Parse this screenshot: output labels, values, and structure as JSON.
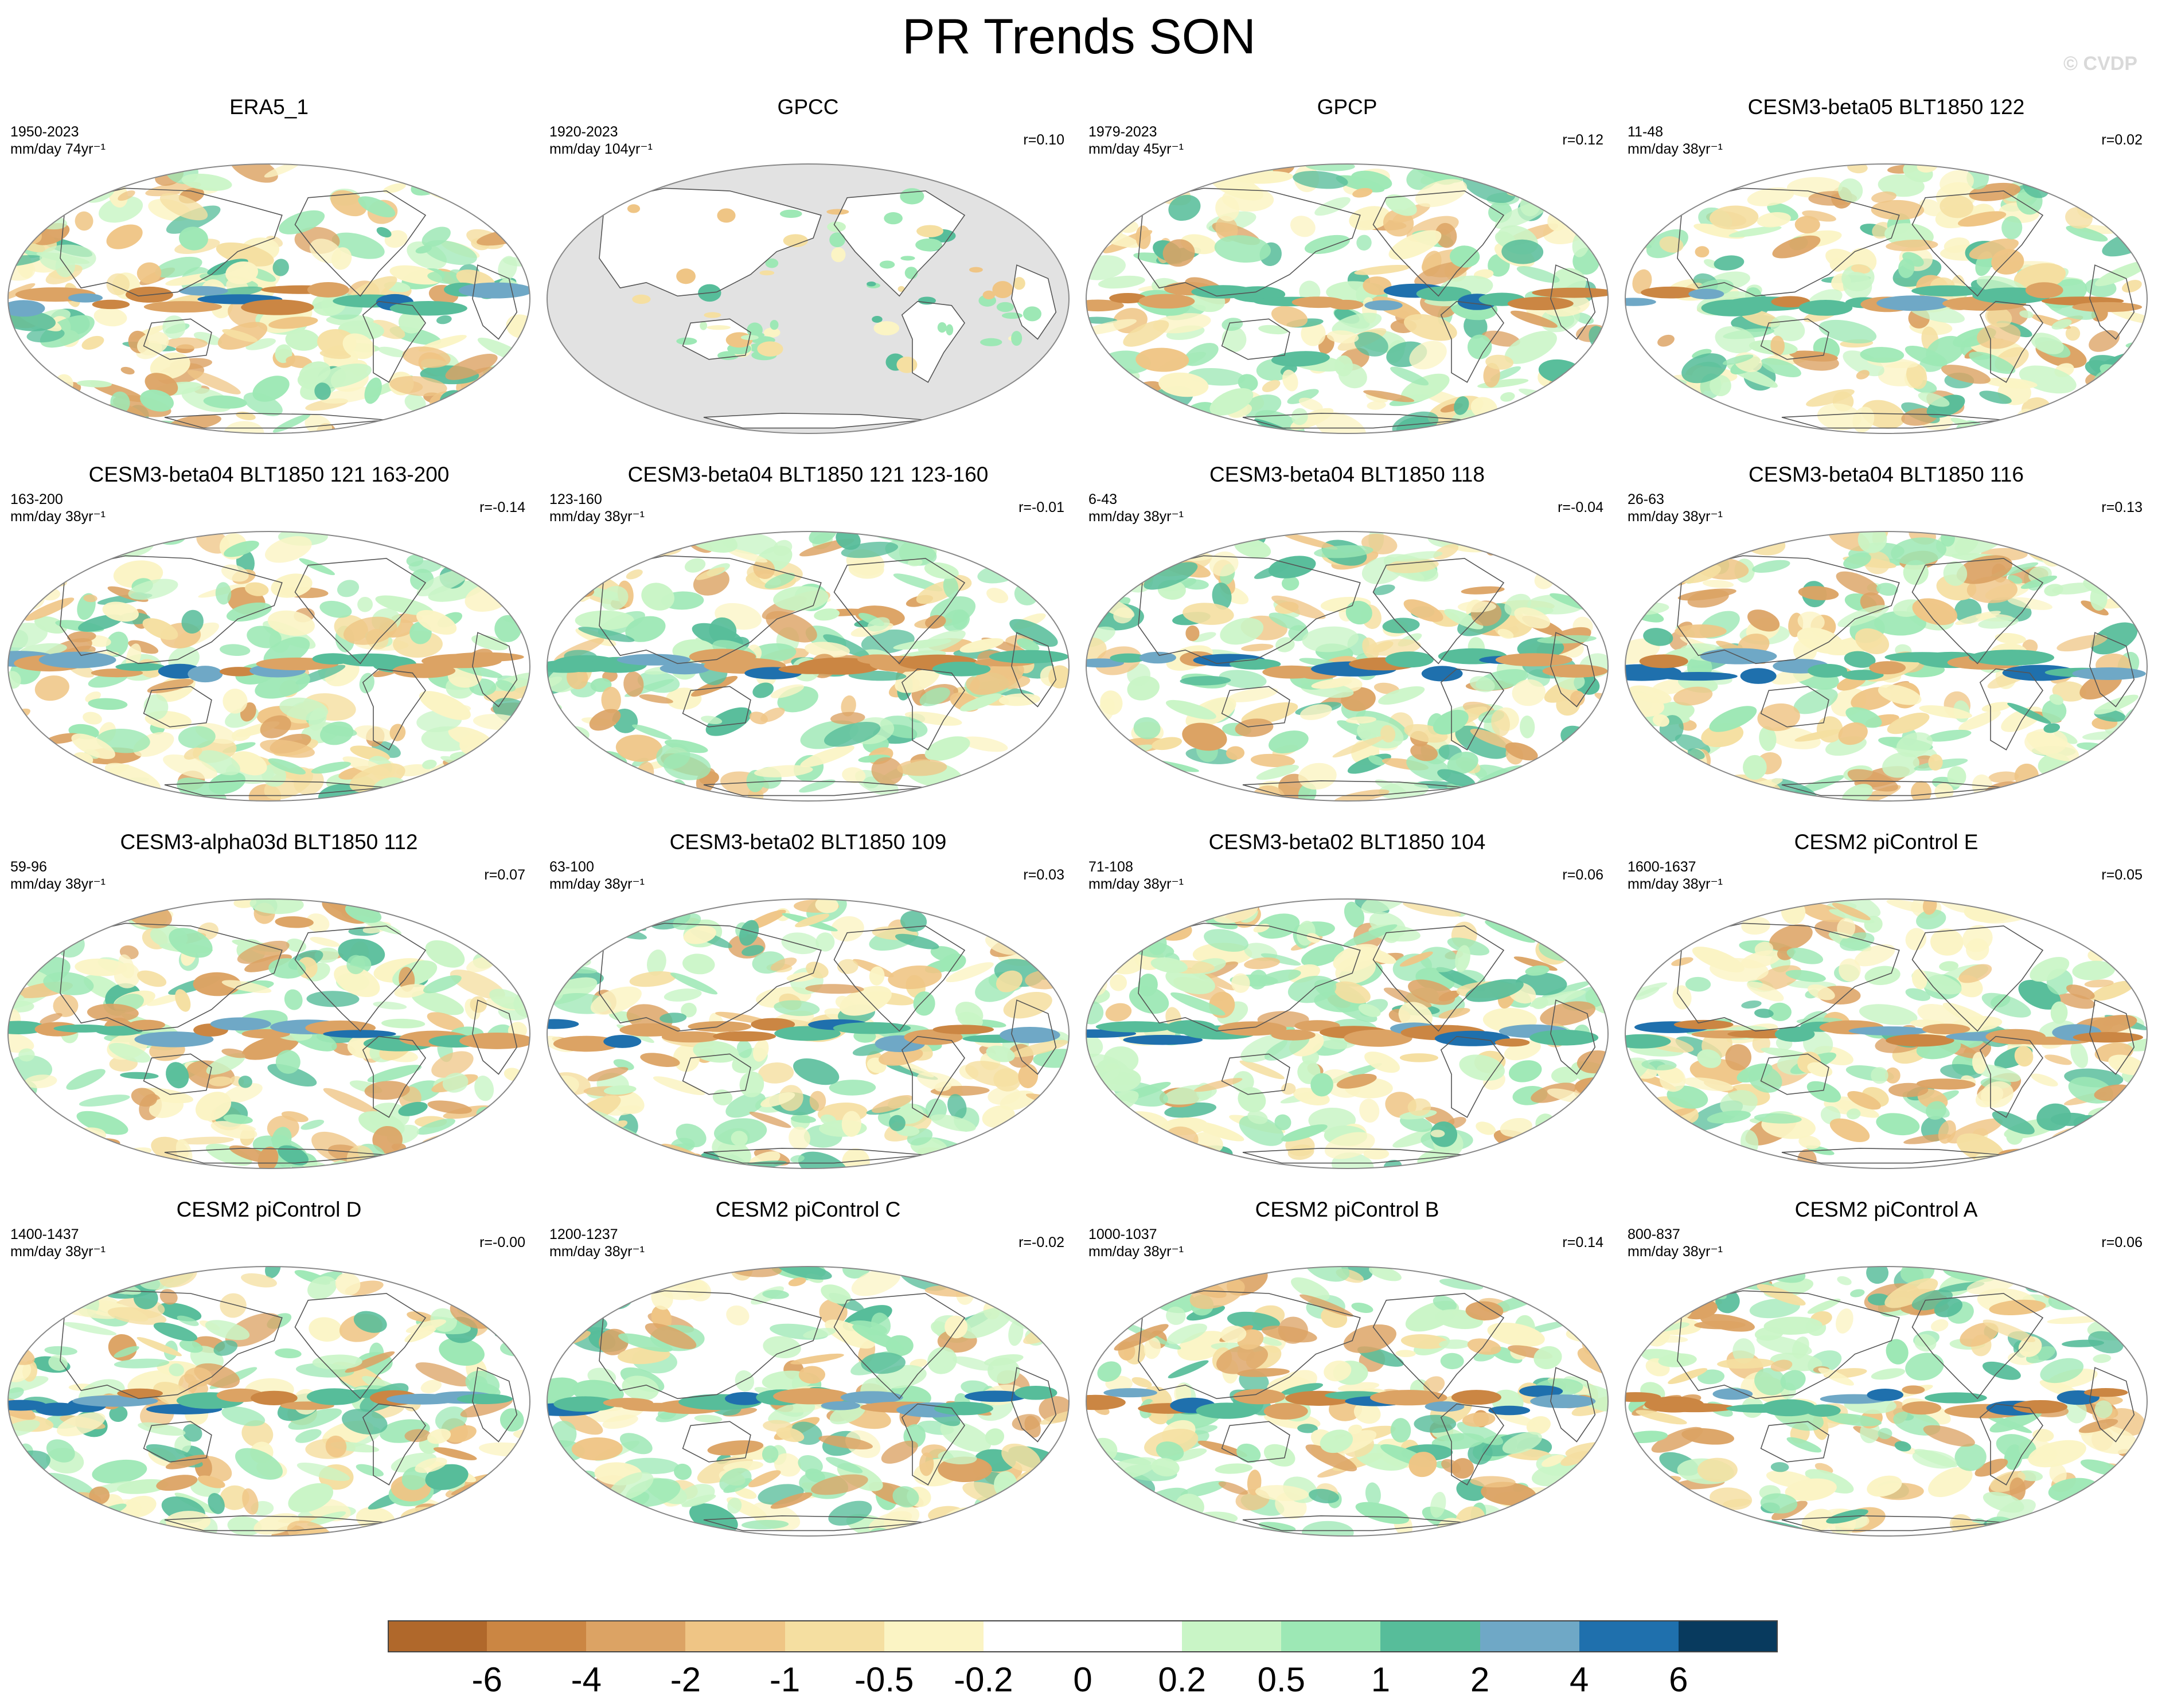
{
  "title": "PR Trends SON",
  "watermark": "© CVDP",
  "panels": [
    {
      "title": "ERA5_1",
      "years": "1950-2023",
      "units": "mm/day 74yr⁻¹",
      "corr": "",
      "mask": false,
      "seed": 11
    },
    {
      "title": "GPCC",
      "years": "1920-2023",
      "units": "mm/day 104yr⁻¹",
      "corr": "r=0.10",
      "mask": true,
      "seed": 23
    },
    {
      "title": "GPCP",
      "years": "1979-2023",
      "units": "mm/day 45yr⁻¹",
      "corr": "r=0.12",
      "mask": false,
      "seed": 37
    },
    {
      "title": "CESM3-beta05 BLT1850 122",
      "years": "11-48",
      "units": "mm/day 38yr⁻¹",
      "corr": "r=0.02",
      "mask": false,
      "seed": 41
    },
    {
      "title": "CESM3-beta04 BLT1850 121 163-200",
      "years": "163-200",
      "units": "mm/day 38yr⁻¹",
      "corr": "r=-0.14",
      "mask": false,
      "seed": 53
    },
    {
      "title": "CESM3-beta04 BLT1850 121 123-160",
      "years": "123-160",
      "units": "mm/day 38yr⁻¹",
      "corr": "r=-0.01",
      "mask": false,
      "seed": 67
    },
    {
      "title": "CESM3-beta04 BLT1850 118",
      "years": "6-43",
      "units": "mm/day 38yr⁻¹",
      "corr": "r=-0.04",
      "mask": false,
      "seed": 71
    },
    {
      "title": "CESM3-beta04 BLT1850 116",
      "years": "26-63",
      "units": "mm/day 38yr⁻¹",
      "corr": "r=0.13",
      "mask": false,
      "seed": 83
    },
    {
      "title": "CESM3-alpha03d BLT1850 112",
      "years": "59-96",
      "units": "mm/day 38yr⁻¹",
      "corr": "r=0.07",
      "mask": false,
      "seed": 97
    },
    {
      "title": "CESM3-beta02 BLT1850 109",
      "years": "63-100",
      "units": "mm/day 38yr⁻¹",
      "corr": "r=0.03",
      "mask": false,
      "seed": 101
    },
    {
      "title": "CESM3-beta02 BLT1850 104",
      "years": "71-108",
      "units": "mm/day 38yr⁻¹",
      "corr": "r=0.06",
      "mask": false,
      "seed": 113
    },
    {
      "title": "CESM2 piControl E",
      "years": "1600-1637",
      "units": "mm/day 38yr⁻¹",
      "corr": "r=0.05",
      "mask": false,
      "seed": 127
    },
    {
      "title": "CESM2 piControl D",
      "years": "1400-1437",
      "units": "mm/day 38yr⁻¹",
      "corr": "r=-0.00",
      "mask": false,
      "seed": 131
    },
    {
      "title": "CESM2 piControl C",
      "years": "1200-1237",
      "units": "mm/day 38yr⁻¹",
      "corr": "r=-0.02",
      "mask": false,
      "seed": 149
    },
    {
      "title": "CESM2 piControl B",
      "years": "1000-1037",
      "units": "mm/day 38yr⁻¹",
      "corr": "r=0.14",
      "mask": false,
      "seed": 157
    },
    {
      "title": "CESM2 piControl A",
      "years": "800-837",
      "units": "mm/day 38yr⁻¹",
      "corr": "r=0.06",
      "mask": false,
      "seed": 163
    }
  ],
  "colorbar": {
    "colors": [
      "#b0682b",
      "#cb8643",
      "#dca364",
      "#efc585",
      "#f5dfa1",
      "#fbf4c4",
      "#ffffff",
      "#ffffff",
      "#c9f5c6",
      "#9de8b5",
      "#57bd9a",
      "#6fa8c6",
      "#1f70ad",
      "#083a5e"
    ],
    "levels": [
      "-6",
      "-4",
      "-2",
      "-1",
      "-0.5",
      "-0.2",
      "0",
      "0.2",
      "0.5",
      "1",
      "2",
      "4",
      "6"
    ]
  },
  "land_color": "#e2e2e2",
  "coast_color": "#555555"
}
